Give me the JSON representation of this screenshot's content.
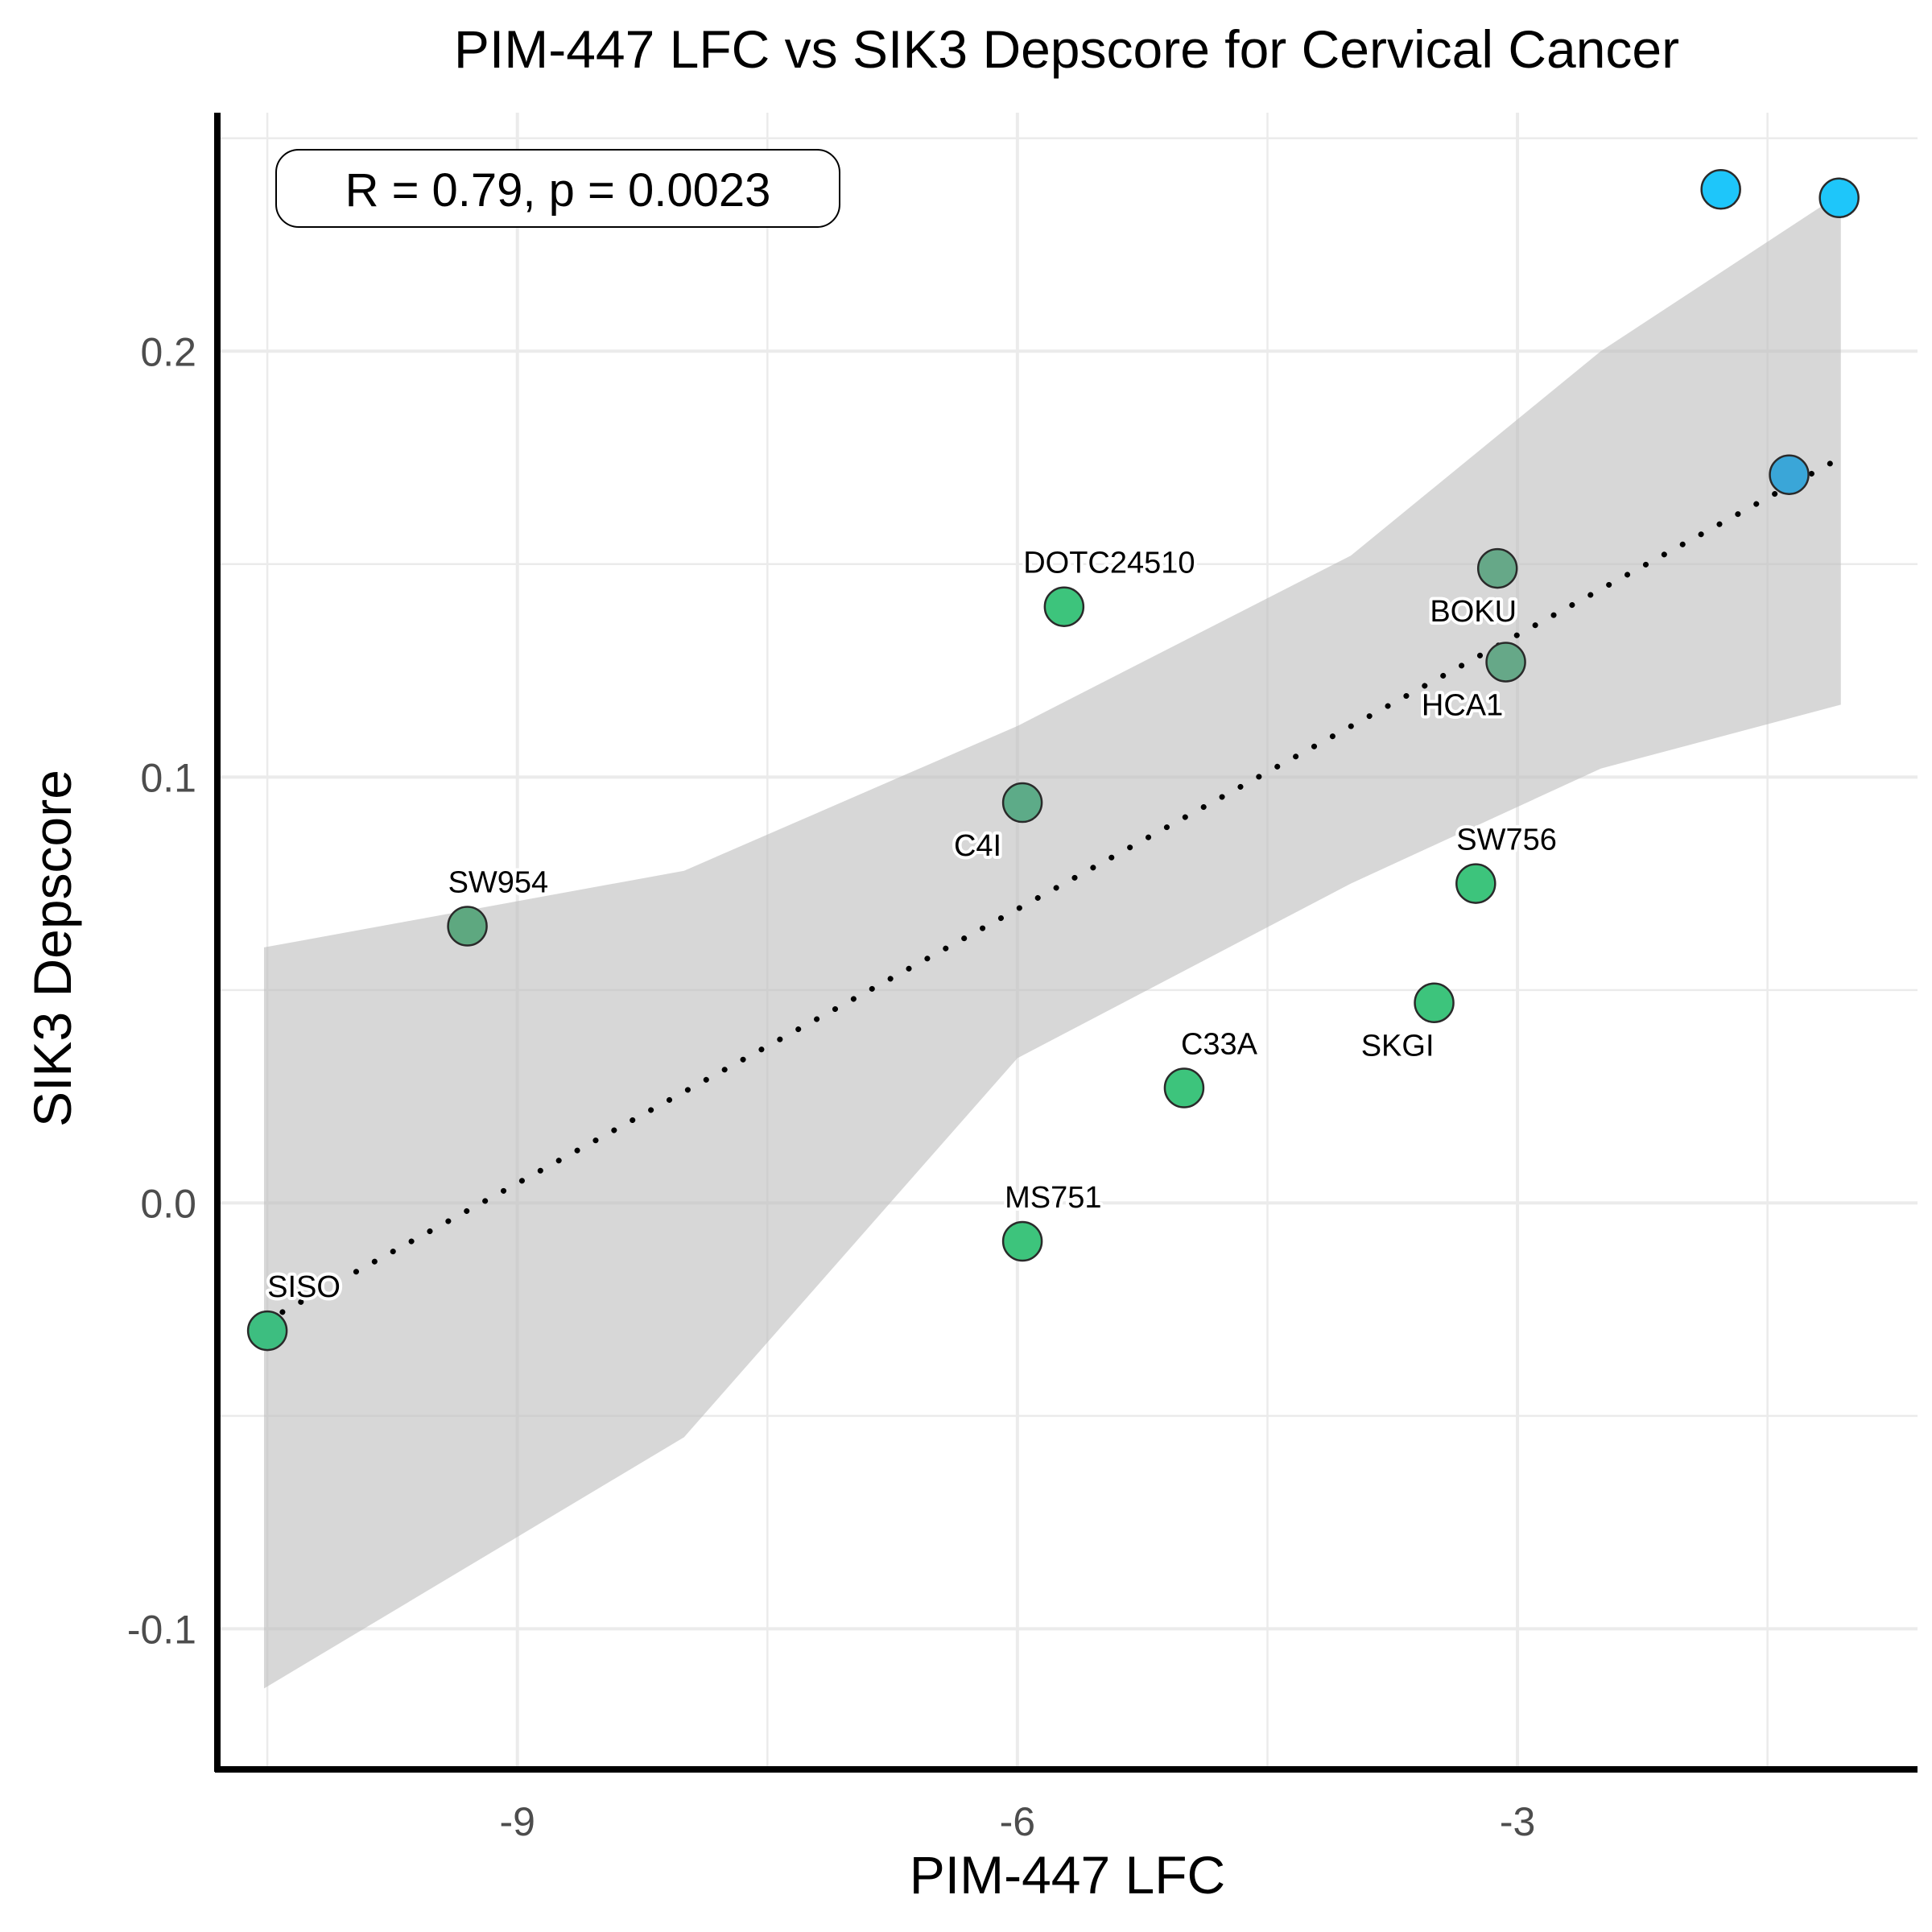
{
  "chart_data": {
    "type": "scatter",
    "title": "PIM-447 LFC vs SIK3 Depscore for Cervical Cancer",
    "xlabel": "PIM-447 LFC",
    "ylabel": "SIK3 Depscore",
    "xlim": [
      -10.8,
      -0.6
    ],
    "ylim": [
      -0.133,
      0.256
    ],
    "xticks": [
      {
        "value": -9,
        "label": "-9"
      },
      {
        "value": -6,
        "label": "-6"
      },
      {
        "value": -3,
        "label": "-3"
      }
    ],
    "yticks": [
      {
        "value": -0.1,
        "label": "-0.1"
      },
      {
        "value": 0.0,
        "label": "0.0"
      },
      {
        "value": 0.1,
        "label": "0.1"
      },
      {
        "value": 0.2,
        "label": "0.2"
      }
    ],
    "grid": true,
    "stat_annotation": "R = 0.79, p = 0.0023",
    "regression": {
      "style": "dotted",
      "x": [
        -10.52,
        -1.06
      ],
      "y": [
        -0.028,
        0.175
      ]
    },
    "confidence_band": {
      "x": [
        -10.52,
        -8.0,
        -6.0,
        -4.0,
        -2.5,
        -1.06
      ],
      "upper": [
        0.06,
        0.078,
        0.112,
        0.152,
        0.2,
        0.237
      ],
      "lower": [
        -0.114,
        -0.055,
        0.034,
        0.075,
        0.102,
        0.117
      ]
    },
    "points": [
      {
        "label": "SISO",
        "x": -10.5,
        "y": -0.03,
        "color": "#3dbe80"
      },
      {
        "label": "SW954",
        "x": -9.3,
        "y": 0.065,
        "color": "#5ea880"
      },
      {
        "label": "MS751",
        "x": -5.97,
        "y": -0.009,
        "color": "#3dc47c"
      },
      {
        "label": "C4I",
        "x": -5.97,
        "y": 0.094,
        "color": "#5dab88"
      },
      {
        "label": "DOTC24510",
        "x": -5.72,
        "y": 0.14,
        "color": "#3dc47c"
      },
      {
        "label": "C33A",
        "x": -5.0,
        "y": 0.027,
        "color": "#3dc47c"
      },
      {
        "label": "SKGI",
        "x": -3.5,
        "y": 0.047,
        "color": "#3dc47c"
      },
      {
        "label": "SW756",
        "x": -3.25,
        "y": 0.075,
        "color": "#3dc47c"
      },
      {
        "label": "BOKU",
        "x": -3.12,
        "y": 0.149,
        "color": "#66a888"
      },
      {
        "label": "HCA1",
        "x": -3.07,
        "y": 0.127,
        "color": "#66a888"
      },
      {
        "label": "",
        "x": -1.37,
        "y": 0.171,
        "color": "#3aa6d8"
      },
      {
        "label": "",
        "x": -1.78,
        "y": 0.238,
        "color": "#1ec6fa"
      },
      {
        "label": "",
        "x": -1.07,
        "y": 0.236,
        "color": "#1ec6fa"
      }
    ]
  }
}
